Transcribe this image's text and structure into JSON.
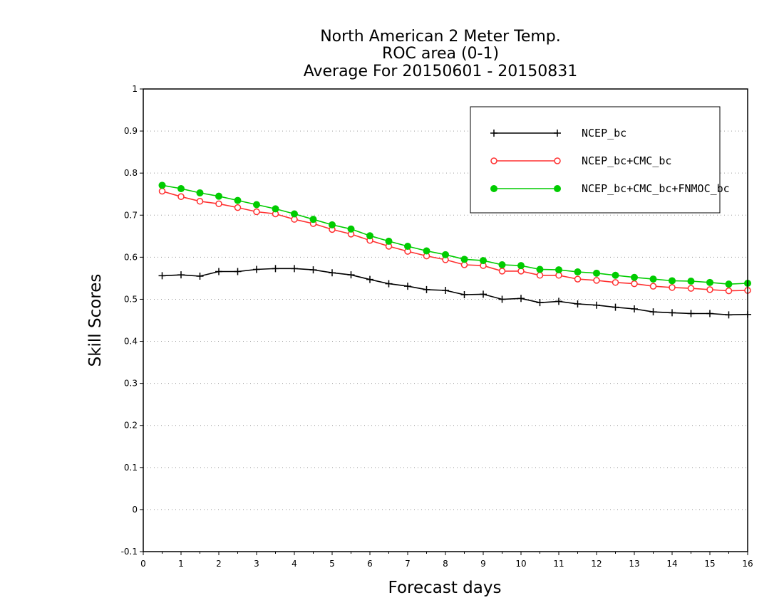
{
  "chart_data": {
    "type": "line",
    "title_lines": [
      "North American 2 Meter Temp.",
      "ROC area (0-1)",
      "Average For 20150601 - 20150831"
    ],
    "xlabel": "Forecast days",
    "ylabel": "Skill Scores",
    "xlim": [
      0,
      16
    ],
    "ylim": [
      -0.1,
      1
    ],
    "x_ticks": [
      "0",
      "1",
      "2",
      "3",
      "4",
      "5",
      "6",
      "7",
      "8",
      "9",
      "10",
      "11",
      "12",
      "13",
      "14",
      "15",
      "16"
    ],
    "y_ticks": [
      "-0.1",
      "0",
      "0.1",
      "0.2",
      "0.3",
      "0.4",
      "0.5",
      "0.6",
      "0.7",
      "0.8",
      "0.9",
      "1"
    ],
    "grid": "horizontal-dotted",
    "legend_position": "top-right",
    "x": [
      0.5,
      1,
      1.5,
      2,
      2.5,
      3,
      3.5,
      4,
      4.5,
      5,
      5.5,
      6,
      6.5,
      7,
      7.5,
      8,
      8.5,
      9,
      9.5,
      10,
      10.5,
      11,
      11.5,
      12,
      12.5,
      13,
      13.5,
      14,
      14.5,
      15,
      15.5,
      16
    ],
    "series": [
      {
        "name": "NCEP_bc",
        "color": "#000000",
        "marker": "plus",
        "values": [
          0.556,
          0.558,
          0.555,
          0.566,
          0.566,
          0.571,
          0.573,
          0.573,
          0.57,
          0.563,
          0.558,
          0.547,
          0.537,
          0.531,
          0.523,
          0.521,
          0.511,
          0.512,
          0.5,
          0.502,
          0.492,
          0.495,
          0.489,
          0.486,
          0.481,
          0.477,
          0.47,
          0.468,
          0.466,
          0.466,
          0.463,
          0.464
        ]
      },
      {
        "name": "NCEP_bc+CMC_bc",
        "color": "#ff3030",
        "marker": "open-circle",
        "values": [
          0.757,
          0.744,
          0.733,
          0.727,
          0.718,
          0.708,
          0.703,
          0.69,
          0.68,
          0.666,
          0.655,
          0.64,
          0.626,
          0.614,
          0.603,
          0.594,
          0.582,
          0.58,
          0.567,
          0.567,
          0.557,
          0.557,
          0.548,
          0.545,
          0.54,
          0.537,
          0.531,
          0.528,
          0.526,
          0.523,
          0.52,
          0.521
        ]
      },
      {
        "name": "NCEP_bc+CMC_bc+FNMOC_bc",
        "color": "#00cc00",
        "marker": "filled-circle",
        "values": [
          0.771,
          0.763,
          0.753,
          0.745,
          0.735,
          0.725,
          0.715,
          0.703,
          0.69,
          0.677,
          0.667,
          0.651,
          0.638,
          0.626,
          0.615,
          0.606,
          0.595,
          0.592,
          0.582,
          0.58,
          0.571,
          0.57,
          0.565,
          0.562,
          0.557,
          0.552,
          0.548,
          0.544,
          0.543,
          0.54,
          0.536,
          0.538
        ]
      }
    ]
  }
}
